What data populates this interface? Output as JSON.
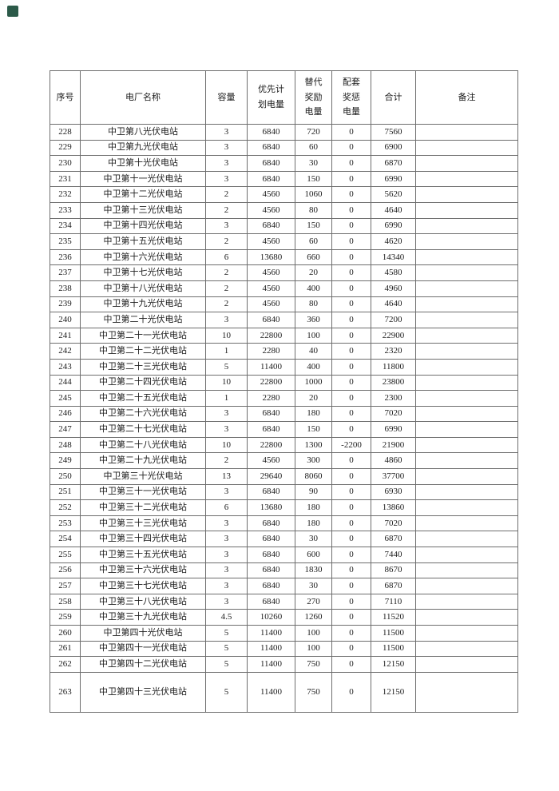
{
  "page": {
    "background_color": "#ffffff",
    "corner_marker_color": "#2c5a49"
  },
  "table": {
    "columns": [
      {
        "key": "seq",
        "label": "序号"
      },
      {
        "key": "plant_name",
        "label": "电厂名称"
      },
      {
        "key": "capacity",
        "label": "容量"
      },
      {
        "key": "priority_planned_power",
        "label": "优先计\n划电量"
      },
      {
        "key": "replacement_reward_power",
        "label": "替代\n奖励\n电量"
      },
      {
        "key": "supporting_reward_penalty_power",
        "label": "配套\n奖惩\n电量"
      },
      {
        "key": "total",
        "label": "合计"
      },
      {
        "key": "remark",
        "label": "备注"
      }
    ],
    "rows": [
      [
        "228",
        "中卫第八光伏电站",
        "3",
        "6840",
        "720",
        "0",
        "7560",
        ""
      ],
      [
        "229",
        "中卫第九光伏电站",
        "3",
        "6840",
        "60",
        "0",
        "6900",
        ""
      ],
      [
        "230",
        "中卫第十光伏电站",
        "3",
        "6840",
        "30",
        "0",
        "6870",
        ""
      ],
      [
        "231",
        "中卫第十一光伏电站",
        "3",
        "6840",
        "150",
        "0",
        "6990",
        ""
      ],
      [
        "232",
        "中卫第十二光伏电站",
        "2",
        "4560",
        "1060",
        "0",
        "5620",
        ""
      ],
      [
        "233",
        "中卫第十三光伏电站",
        "2",
        "4560",
        "80",
        "0",
        "4640",
        ""
      ],
      [
        "234",
        "中卫第十四光伏电站",
        "3",
        "6840",
        "150",
        "0",
        "6990",
        ""
      ],
      [
        "235",
        "中卫第十五光伏电站",
        "2",
        "4560",
        "60",
        "0",
        "4620",
        ""
      ],
      [
        "236",
        "中卫第十六光伏电站",
        "6",
        "13680",
        "660",
        "0",
        "14340",
        ""
      ],
      [
        "237",
        "中卫第十七光伏电站",
        "2",
        "4560",
        "20",
        "0",
        "4580",
        ""
      ],
      [
        "238",
        "中卫第十八光伏电站",
        "2",
        "4560",
        "400",
        "0",
        "4960",
        ""
      ],
      [
        "239",
        "中卫第十九光伏电站",
        "2",
        "4560",
        "80",
        "0",
        "4640",
        ""
      ],
      [
        "240",
        "中卫第二十光伏电站",
        "3",
        "6840",
        "360",
        "0",
        "7200",
        ""
      ],
      [
        "241",
        "中卫第二十一光伏电站",
        "10",
        "22800",
        "100",
        "0",
        "22900",
        ""
      ],
      [
        "242",
        "中卫第二十二光伏电站",
        "1",
        "2280",
        "40",
        "0",
        "2320",
        ""
      ],
      [
        "243",
        "中卫第二十三光伏电站",
        "5",
        "11400",
        "400",
        "0",
        "11800",
        ""
      ],
      [
        "244",
        "中卫第二十四光伏电站",
        "10",
        "22800",
        "1000",
        "0",
        "23800",
        ""
      ],
      [
        "245",
        "中卫第二十五光伏电站",
        "1",
        "2280",
        "20",
        "0",
        "2300",
        ""
      ],
      [
        "246",
        "中卫第二十六光伏电站",
        "3",
        "6840",
        "180",
        "0",
        "7020",
        ""
      ],
      [
        "247",
        "中卫第二十七光伏电站",
        "3",
        "6840",
        "150",
        "0",
        "6990",
        ""
      ],
      [
        "248",
        "中卫第二十八光伏电站",
        "10",
        "22800",
        "1300",
        "-2200",
        "21900",
        ""
      ],
      [
        "249",
        "中卫第二十九光伏电站",
        "2",
        "4560",
        "300",
        "0",
        "4860",
        ""
      ],
      [
        "250",
        "中卫第三十光伏电站",
        "13",
        "29640",
        "8060",
        "0",
        "37700",
        ""
      ],
      [
        "251",
        "中卫第三十一光伏电站",
        "3",
        "6840",
        "90",
        "0",
        "6930",
        ""
      ],
      [
        "252",
        "中卫第三十二光伏电站",
        "6",
        "13680",
        "180",
        "0",
        "13860",
        ""
      ],
      [
        "253",
        "中卫第三十三光伏电站",
        "3",
        "6840",
        "180",
        "0",
        "7020",
        ""
      ],
      [
        "254",
        "中卫第三十四光伏电站",
        "3",
        "6840",
        "30",
        "0",
        "6870",
        ""
      ],
      [
        "255",
        "中卫第三十五光伏电站",
        "3",
        "6840",
        "600",
        "0",
        "7440",
        ""
      ],
      [
        "256",
        "中卫第三十六光伏电站",
        "3",
        "6840",
        "1830",
        "0",
        "8670",
        ""
      ],
      [
        "257",
        "中卫第三十七光伏电站",
        "3",
        "6840",
        "30",
        "0",
        "6870",
        ""
      ],
      [
        "258",
        "中卫第三十八光伏电站",
        "3",
        "6840",
        "270",
        "0",
        "7110",
        ""
      ],
      [
        "259",
        "中卫第三十九光伏电站",
        "4.5",
        "10260",
        "1260",
        "0",
        "11520",
        ""
      ],
      [
        "260",
        "中卫第四十光伏电站",
        "5",
        "11400",
        "100",
        "0",
        "11500",
        ""
      ],
      [
        "261",
        "中卫第四十一光伏电站",
        "5",
        "11400",
        "100",
        "0",
        "11500",
        ""
      ],
      [
        "262",
        "中卫第四十二光伏电站",
        "5",
        "11400",
        "750",
        "0",
        "12150",
        ""
      ],
      [
        "263",
        "中卫第四十三光伏电站",
        "5",
        "11400",
        "750",
        "0",
        "12150",
        ""
      ]
    ]
  }
}
